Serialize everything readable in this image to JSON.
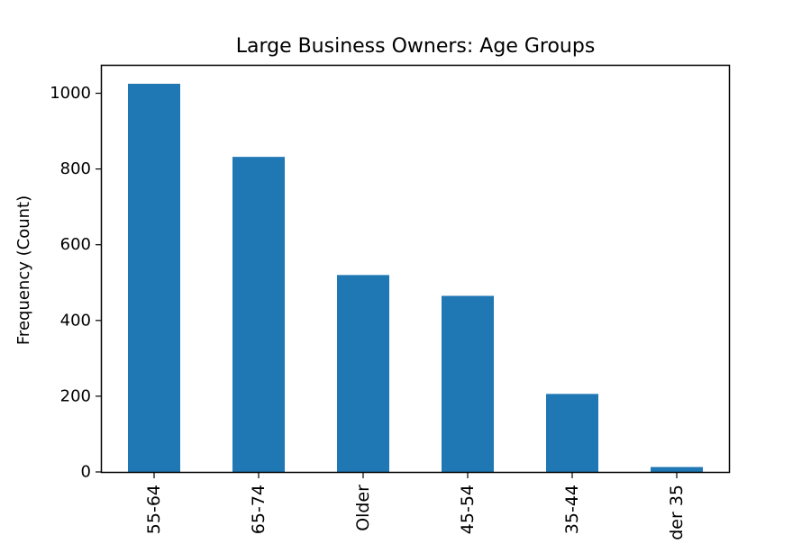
{
  "chart_data": {
    "type": "bar",
    "title": "Large Business Owners: Age Groups",
    "xlabel": "",
    "ylabel": "Frequency (Count)",
    "categories": [
      "55-64",
      "65-74",
      "Older",
      "45-54",
      "35-44",
      "der 35"
    ],
    "values": [
      1025,
      832,
      520,
      465,
      206,
      13
    ],
    "ylim": [
      0,
      1075
    ],
    "yticks": [
      0,
      200,
      400,
      600,
      800,
      1000
    ],
    "ytick_labels": [
      "0",
      "200",
      "400",
      "600",
      "800",
      "1000"
    ],
    "bar_color": "#1f77b4",
    "grid": false,
    "legend": "none"
  }
}
